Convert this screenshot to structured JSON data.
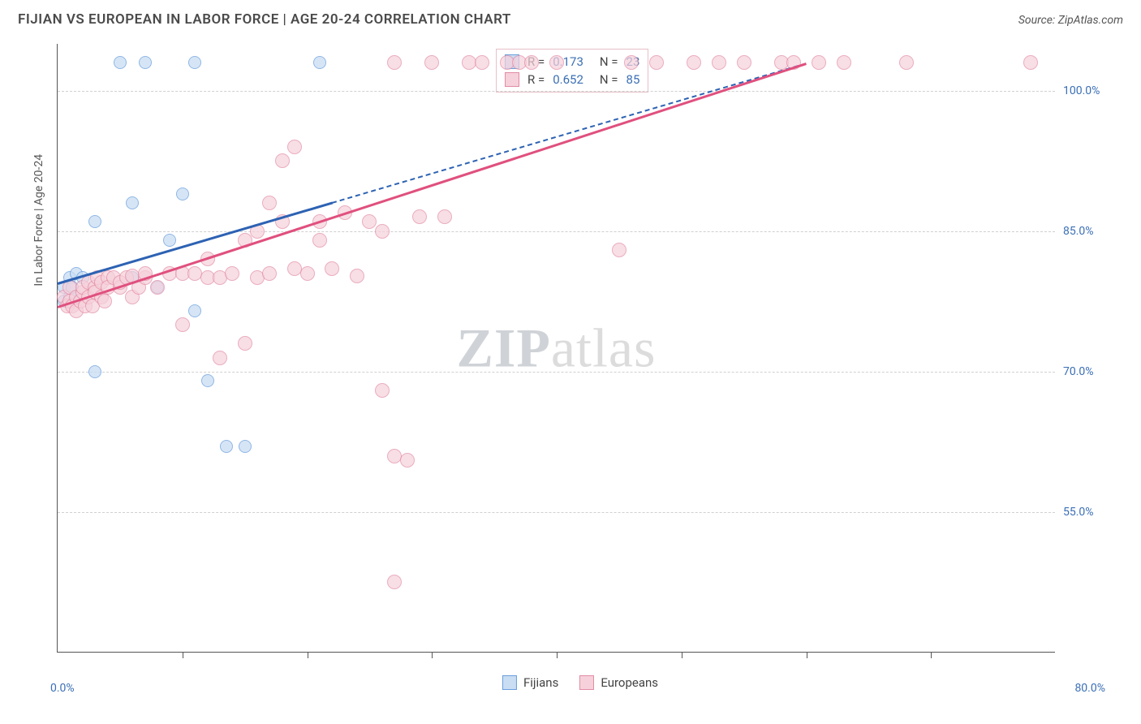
{
  "header": {
    "title": "FIJIAN VS EUROPEAN IN LABOR FORCE | AGE 20-24 CORRELATION CHART",
    "source": "Source: ZipAtlas.com"
  },
  "watermark": {
    "bold": "ZIP",
    "rest": "atlas"
  },
  "chart": {
    "type": "scatter",
    "ylabel": "In Labor Force | Age 20-24",
    "xlim": [
      0,
      80
    ],
    "ylim": [
      40,
      105
    ],
    "xlim_labels": {
      "min": "0.0%",
      "max": "80.0%"
    },
    "xtick_positions": [
      10,
      20,
      30,
      40,
      50,
      60,
      70
    ],
    "yticks": [
      {
        "v": 55,
        "label": "55.0%"
      },
      {
        "v": 70,
        "label": "70.0%"
      },
      {
        "v": 85,
        "label": "85.0%"
      },
      {
        "v": 100,
        "label": "100.0%"
      }
    ],
    "grid_color": "#d0d0d0",
    "background_color": "#ffffff",
    "series": [
      {
        "name": "Fijians",
        "fill": "#c9ddf3",
        "stroke": "#6a9fdd",
        "marker_radius": 8,
        "marker_opacity": 0.75,
        "trend_color": "#2d62b3",
        "trend": {
          "x0": 0,
          "y0": 79.5,
          "x1": 60,
          "y1": 103,
          "solid_until_x": 22
        },
        "stats": {
          "R": "0.173",
          "N": "23"
        },
        "points": [
          [
            0.5,
            79
          ],
          [
            0.5,
            77.5
          ],
          [
            1,
            80
          ],
          [
            1,
            78
          ],
          [
            1.2,
            79
          ],
          [
            1.5,
            78
          ],
          [
            1.5,
            80.5
          ],
          [
            2,
            80
          ],
          [
            3,
            86
          ],
          [
            3,
            70
          ],
          [
            5,
            103
          ],
          [
            6,
            88
          ],
          [
            6,
            80
          ],
          [
            7,
            103
          ],
          [
            8,
            79
          ],
          [
            9,
            84
          ],
          [
            10,
            89
          ],
          [
            11,
            76.5
          ],
          [
            11,
            103
          ],
          [
            12,
            69
          ],
          [
            13.5,
            62
          ],
          [
            15,
            62
          ],
          [
            21,
            103
          ]
        ]
      },
      {
        "name": "Europeans",
        "fill": "#f6d1db",
        "stroke": "#e28ba4",
        "marker_radius": 9,
        "marker_opacity": 0.7,
        "trend_color": "#e0507e",
        "trend": {
          "x0": 0,
          "y0": 77,
          "x1": 60,
          "y1": 103,
          "solid_until_x": 60
        },
        "stats": {
          "R": "0.652",
          "N": "85"
        },
        "points": [
          [
            0.5,
            78
          ],
          [
            0.8,
            77
          ],
          [
            1,
            77.5
          ],
          [
            1,
            79
          ],
          [
            1.2,
            77
          ],
          [
            1.5,
            78
          ],
          [
            1.5,
            76.5
          ],
          [
            1.8,
            77.5
          ],
          [
            2,
            78.5
          ],
          [
            2,
            79
          ],
          [
            2.2,
            77
          ],
          [
            2.5,
            79.5
          ],
          [
            2.5,
            78
          ],
          [
            2.8,
            77
          ],
          [
            3,
            79
          ],
          [
            3,
            78.5
          ],
          [
            3.2,
            80
          ],
          [
            3.5,
            79.5
          ],
          [
            3.5,
            78
          ],
          [
            3.8,
            77.5
          ],
          [
            4,
            80
          ],
          [
            4,
            79
          ],
          [
            4.5,
            80
          ],
          [
            5,
            79
          ],
          [
            5,
            79.5
          ],
          [
            5.5,
            80
          ],
          [
            6,
            80.2
          ],
          [
            6,
            78
          ],
          [
            6.5,
            79
          ],
          [
            7,
            80
          ],
          [
            7,
            80.5
          ],
          [
            8,
            79
          ],
          [
            9,
            80.5
          ],
          [
            10,
            80.5
          ],
          [
            10,
            75
          ],
          [
            11,
            80.5
          ],
          [
            12,
            80
          ],
          [
            12,
            82
          ],
          [
            13,
            71.5
          ],
          [
            13,
            80
          ],
          [
            14,
            80.5
          ],
          [
            15,
            84
          ],
          [
            15,
            73
          ],
          [
            16,
            85
          ],
          [
            16,
            80
          ],
          [
            17,
            80.5
          ],
          [
            17,
            88
          ],
          [
            18,
            86
          ],
          [
            18,
            92.5
          ],
          [
            19,
            81
          ],
          [
            19,
            94
          ],
          [
            20,
            80.5
          ],
          [
            21,
            86
          ],
          [
            21,
            84
          ],
          [
            22,
            81
          ],
          [
            23,
            87
          ],
          [
            24,
            80.2
          ],
          [
            25,
            86
          ],
          [
            26,
            68
          ],
          [
            26,
            85
          ],
          [
            27,
            61
          ],
          [
            27,
            47.5
          ],
          [
            27,
            103
          ],
          [
            28,
            60.5
          ],
          [
            29,
            86.5
          ],
          [
            30,
            103
          ],
          [
            31,
            86.5
          ],
          [
            33,
            103
          ],
          [
            34,
            103
          ],
          [
            36,
            103
          ],
          [
            37,
            103
          ],
          [
            38,
            103
          ],
          [
            40,
            103
          ],
          [
            45,
            83
          ],
          [
            46,
            103
          ],
          [
            48,
            103
          ],
          [
            51,
            103
          ],
          [
            53,
            103
          ],
          [
            55,
            103
          ],
          [
            58,
            103
          ],
          [
            59,
            103
          ],
          [
            61,
            103
          ],
          [
            63,
            103
          ],
          [
            68,
            103
          ],
          [
            78,
            103
          ]
        ]
      }
    ],
    "legend": [
      {
        "name": "Fijians",
        "fill": "#c9ddf3",
        "stroke": "#6a9fdd"
      },
      {
        "name": "Europeans",
        "fill": "#f6d1db",
        "stroke": "#e28ba4"
      }
    ]
  }
}
